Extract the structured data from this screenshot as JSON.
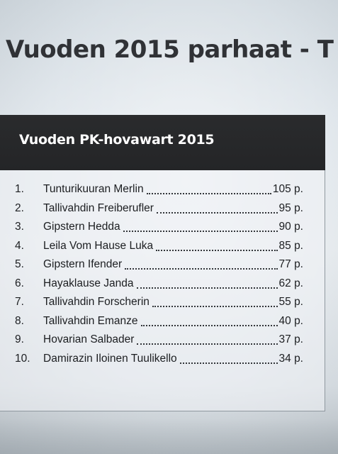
{
  "page": {
    "title": "Vuoden 2015 parhaat - T"
  },
  "box": {
    "title": "Vuoden PK-hovawart 2015"
  },
  "ranking": [
    {
      "rank": "1.",
      "name": "Tunturikuuran Merlin",
      "points": "105 p."
    },
    {
      "rank": "2.",
      "name": "Tallivahdin Freiberufler",
      "points": "95 p."
    },
    {
      "rank": "3.",
      "name": "Gipstern Hedda",
      "points": "90 p."
    },
    {
      "rank": "4.",
      "name": "Leila Vom Hause Luka",
      "points": "85 p."
    },
    {
      "rank": "5.",
      "name": "Gipstern Ifender",
      "points": "77 p."
    },
    {
      "rank": "6.",
      "name": "Hayaklause Janda",
      "points": "62 p."
    },
    {
      "rank": "7.",
      "name": "Tallivahdin Forscherin",
      "points": "55 p."
    },
    {
      "rank": "8.",
      "name": "Tallivahdin Emanze",
      "points": "40 p."
    },
    {
      "rank": "9.",
      "name": "Hovarian Salbader",
      "points": "37 p."
    },
    {
      "rank": "10.",
      "name": "Damirazin Iloinen Tuulikello",
      "points": "34 p."
    }
  ],
  "colors": {
    "header_background": "#242527",
    "header_text": "#ffffff",
    "body_text": "#1c1e21"
  }
}
